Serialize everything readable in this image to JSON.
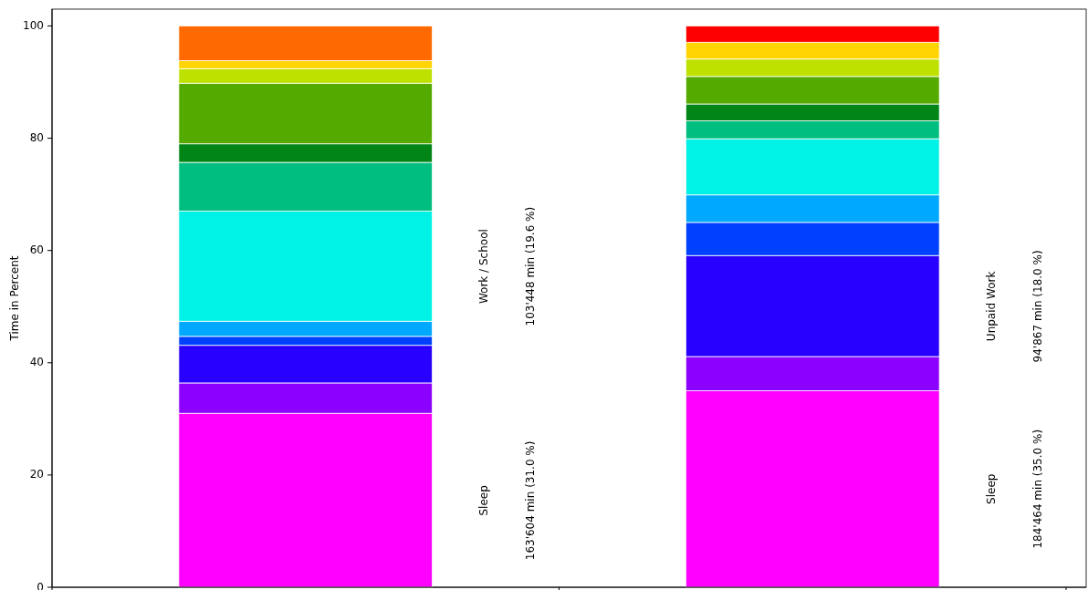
{
  "chart_data": {
    "type": "bar",
    "stacked": true,
    "ylabel": "Time in Percent",
    "categories": [
      null,
      null
    ],
    "ylim": [
      0,
      103
    ],
    "yticks": [
      0,
      20,
      40,
      60,
      80,
      100
    ],
    "grid": false,
    "series": [
      {
        "color": "#ff00ff",
        "values": [
          31.0,
          35.0
        ]
      },
      {
        "color": "#8c00ff",
        "values": [
          5.4,
          6.1
        ]
      },
      {
        "color": "#2800ff",
        "values": [
          6.7,
          18.0
        ]
      },
      {
        "color": "#0040ff",
        "values": [
          1.6,
          5.9
        ]
      },
      {
        "color": "#00a8ff",
        "values": [
          2.7,
          4.9
        ]
      },
      {
        "color": "#00f2e6",
        "values": [
          19.6,
          10.0
        ]
      },
      {
        "color": "#00bd80",
        "values": [
          8.7,
          3.2
        ]
      },
      {
        "color": "#008516",
        "values": [
          3.3,
          3.0
        ]
      },
      {
        "color": "#55aa00",
        "values": [
          10.8,
          4.9
        ]
      },
      {
        "color": "#bfe100",
        "values": [
          2.6,
          3.1
        ]
      },
      {
        "color": "#ffd400",
        "values": [
          1.4,
          3.0
        ]
      },
      {
        "colors": [
          "#ff6a00",
          "#ff0000"
        ],
        "values": [
          6.2,
          2.9
        ]
      }
    ],
    "annotations": [
      "Sleep",
      "163'604 min (31.0 %)",
      "Work / School",
      "103'448 min (19.6 %)",
      "Sleep",
      "184'464 min (35.0 %)",
      "Unpaid Work",
      "94'867 min (18.0 %)"
    ]
  }
}
